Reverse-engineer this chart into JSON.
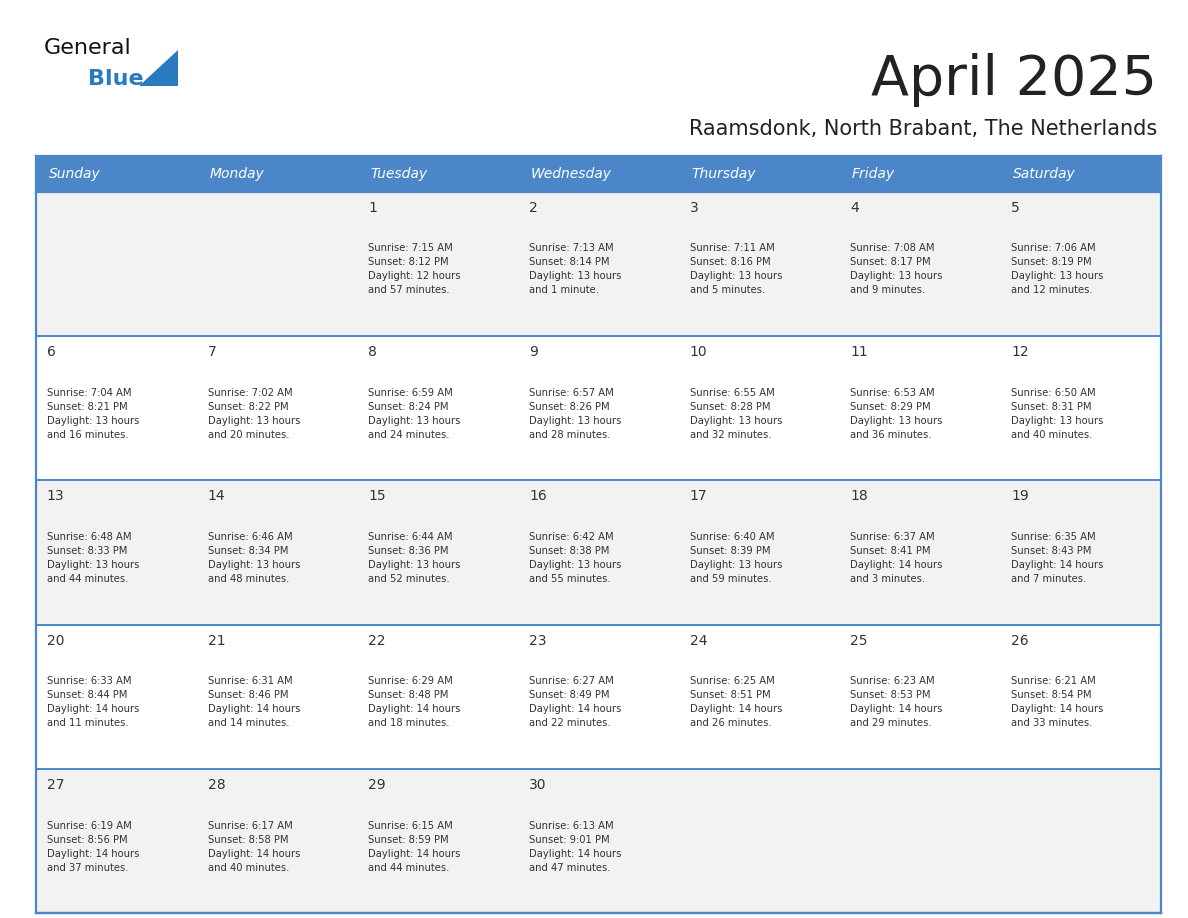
{
  "title": "April 2025",
  "subtitle": "Raamsdonk, North Brabant, The Netherlands",
  "days_of_week": [
    "Sunday",
    "Monday",
    "Tuesday",
    "Wednesday",
    "Thursday",
    "Friday",
    "Saturday"
  ],
  "header_bg": "#4a86c8",
  "header_text": "#ffffff",
  "row_bg_light": "#f2f2f2",
  "row_bg_white": "#ffffff",
  "cell_text": "#333333",
  "border_color": "#4a86c8",
  "title_color": "#222222",
  "subtitle_color": "#222222",
  "logo_color": "#2a7abf",
  "logo_general_color": "#111111",
  "calendar_data": [
    [
      {
        "day": null
      },
      {
        "day": null
      },
      {
        "day": "1",
        "sunrise": "7:15 AM",
        "sunset": "8:12 PM",
        "daylight": "12 hours",
        "daylight2": "and 57 minutes."
      },
      {
        "day": "2",
        "sunrise": "7:13 AM",
        "sunset": "8:14 PM",
        "daylight": "13 hours",
        "daylight2": "and 1 minute."
      },
      {
        "day": "3",
        "sunrise": "7:11 AM",
        "sunset": "8:16 PM",
        "daylight": "13 hours",
        "daylight2": "and 5 minutes."
      },
      {
        "day": "4",
        "sunrise": "7:08 AM",
        "sunset": "8:17 PM",
        "daylight": "13 hours",
        "daylight2": "and 9 minutes."
      },
      {
        "day": "5",
        "sunrise": "7:06 AM",
        "sunset": "8:19 PM",
        "daylight": "13 hours",
        "daylight2": "and 12 minutes."
      }
    ],
    [
      {
        "day": "6",
        "sunrise": "7:04 AM",
        "sunset": "8:21 PM",
        "daylight": "13 hours",
        "daylight2": "and 16 minutes."
      },
      {
        "day": "7",
        "sunrise": "7:02 AM",
        "sunset": "8:22 PM",
        "daylight": "13 hours",
        "daylight2": "and 20 minutes."
      },
      {
        "day": "8",
        "sunrise": "6:59 AM",
        "sunset": "8:24 PM",
        "daylight": "13 hours",
        "daylight2": "and 24 minutes."
      },
      {
        "day": "9",
        "sunrise": "6:57 AM",
        "sunset": "8:26 PM",
        "daylight": "13 hours",
        "daylight2": "and 28 minutes."
      },
      {
        "day": "10",
        "sunrise": "6:55 AM",
        "sunset": "8:28 PM",
        "daylight": "13 hours",
        "daylight2": "and 32 minutes."
      },
      {
        "day": "11",
        "sunrise": "6:53 AM",
        "sunset": "8:29 PM",
        "daylight": "13 hours",
        "daylight2": "and 36 minutes."
      },
      {
        "day": "12",
        "sunrise": "6:50 AM",
        "sunset": "8:31 PM",
        "daylight": "13 hours",
        "daylight2": "and 40 minutes."
      }
    ],
    [
      {
        "day": "13",
        "sunrise": "6:48 AM",
        "sunset": "8:33 PM",
        "daylight": "13 hours",
        "daylight2": "and 44 minutes."
      },
      {
        "day": "14",
        "sunrise": "6:46 AM",
        "sunset": "8:34 PM",
        "daylight": "13 hours",
        "daylight2": "and 48 minutes."
      },
      {
        "day": "15",
        "sunrise": "6:44 AM",
        "sunset": "8:36 PM",
        "daylight": "13 hours",
        "daylight2": "and 52 minutes."
      },
      {
        "day": "16",
        "sunrise": "6:42 AM",
        "sunset": "8:38 PM",
        "daylight": "13 hours",
        "daylight2": "and 55 minutes."
      },
      {
        "day": "17",
        "sunrise": "6:40 AM",
        "sunset": "8:39 PM",
        "daylight": "13 hours",
        "daylight2": "and 59 minutes."
      },
      {
        "day": "18",
        "sunrise": "6:37 AM",
        "sunset": "8:41 PM",
        "daylight": "14 hours",
        "daylight2": "and 3 minutes."
      },
      {
        "day": "19",
        "sunrise": "6:35 AM",
        "sunset": "8:43 PM",
        "daylight": "14 hours",
        "daylight2": "and 7 minutes."
      }
    ],
    [
      {
        "day": "20",
        "sunrise": "6:33 AM",
        "sunset": "8:44 PM",
        "daylight": "14 hours",
        "daylight2": "and 11 minutes."
      },
      {
        "day": "21",
        "sunrise": "6:31 AM",
        "sunset": "8:46 PM",
        "daylight": "14 hours",
        "daylight2": "and 14 minutes."
      },
      {
        "day": "22",
        "sunrise": "6:29 AM",
        "sunset": "8:48 PM",
        "daylight": "14 hours",
        "daylight2": "and 18 minutes."
      },
      {
        "day": "23",
        "sunrise": "6:27 AM",
        "sunset": "8:49 PM",
        "daylight": "14 hours",
        "daylight2": "and 22 minutes."
      },
      {
        "day": "24",
        "sunrise": "6:25 AM",
        "sunset": "8:51 PM",
        "daylight": "14 hours",
        "daylight2": "and 26 minutes."
      },
      {
        "day": "25",
        "sunrise": "6:23 AM",
        "sunset": "8:53 PM",
        "daylight": "14 hours",
        "daylight2": "and 29 minutes."
      },
      {
        "day": "26",
        "sunrise": "6:21 AM",
        "sunset": "8:54 PM",
        "daylight": "14 hours",
        "daylight2": "and 33 minutes."
      }
    ],
    [
      {
        "day": "27",
        "sunrise": "6:19 AM",
        "sunset": "8:56 PM",
        "daylight": "14 hours",
        "daylight2": "and 37 minutes."
      },
      {
        "day": "28",
        "sunrise": "6:17 AM",
        "sunset": "8:58 PM",
        "daylight": "14 hours",
        "daylight2": "and 40 minutes."
      },
      {
        "day": "29",
        "sunrise": "6:15 AM",
        "sunset": "8:59 PM",
        "daylight": "14 hours",
        "daylight2": "and 44 minutes."
      },
      {
        "day": "30",
        "sunrise": "6:13 AM",
        "sunset": "9:01 PM",
        "daylight": "14 hours",
        "daylight2": "and 47 minutes."
      },
      {
        "day": null
      },
      {
        "day": null
      },
      {
        "day": null
      }
    ]
  ]
}
